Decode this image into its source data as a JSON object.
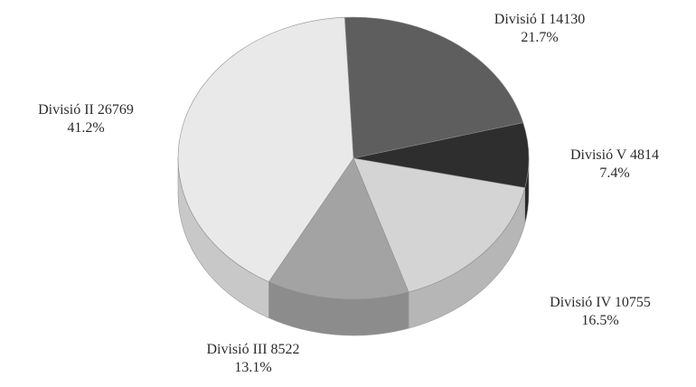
{
  "chart_data": {
    "type": "pie",
    "title": "",
    "slices": [
      {
        "label": "Divisió I",
        "value": 14130,
        "percent_label": "21.7%",
        "color": "#5e5e5e"
      },
      {
        "label": "Divisió V",
        "value": 4814,
        "percent_label": "7.4%",
        "color": "#2e2e2e"
      },
      {
        "label": "Divisió IV",
        "value": 10755,
        "percent_label": "16.5%",
        "color": "#d4d4d4"
      },
      {
        "label": "Divisió III",
        "value": 8522,
        "percent_label": "13.1%",
        "color": "#a3a3a3"
      },
      {
        "label": "Divisió II",
        "value": 26769,
        "percent_label": "41.2%",
        "color": "#e9e9e9"
      }
    ],
    "style": "3d-pie",
    "legend": "none"
  }
}
